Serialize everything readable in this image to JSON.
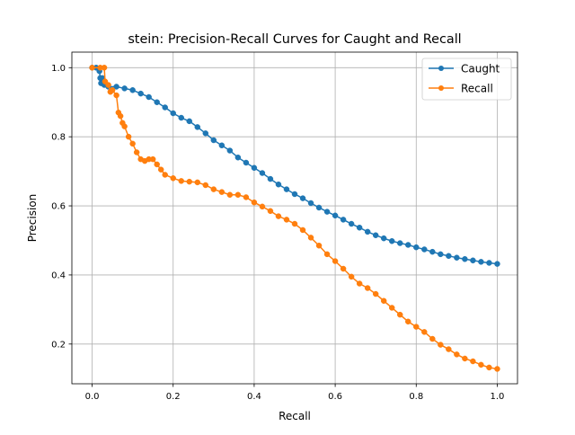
{
  "chart_data": {
    "type": "line",
    "title": "stein: Precision-Recall Curves for Caught and Recall",
    "xlabel": "Recall",
    "ylabel": "Precision",
    "xlim": [
      -0.05,
      1.05
    ],
    "ylim": [
      0.085,
      1.045
    ],
    "xticks": [
      "0.0",
      "0.2",
      "0.4",
      "0.6",
      "0.8",
      "1.0"
    ],
    "yticks": [
      "0.2",
      "0.4",
      "0.6",
      "0.8",
      "1.0"
    ],
    "grid": true,
    "legend_position": "top-right",
    "series": [
      {
        "name": "Caught",
        "color": "#1f77b4",
        "marker": "circle",
        "points": [
          [
            0.0,
            1.0
          ],
          [
            0.01,
            1.0
          ],
          [
            0.018,
            0.99
          ],
          [
            0.02,
            0.97
          ],
          [
            0.022,
            0.955
          ],
          [
            0.025,
            0.97
          ],
          [
            0.03,
            0.95
          ],
          [
            0.04,
            0.945
          ],
          [
            0.06,
            0.945
          ],
          [
            0.08,
            0.94
          ],
          [
            0.1,
            0.935
          ],
          [
            0.12,
            0.925
          ],
          [
            0.14,
            0.915
          ],
          [
            0.16,
            0.9
          ],
          [
            0.18,
            0.885
          ],
          [
            0.2,
            0.868
          ],
          [
            0.22,
            0.855
          ],
          [
            0.24,
            0.845
          ],
          [
            0.26,
            0.828
          ],
          [
            0.28,
            0.81
          ],
          [
            0.3,
            0.79
          ],
          [
            0.32,
            0.775
          ],
          [
            0.34,
            0.76
          ],
          [
            0.36,
            0.74
          ],
          [
            0.38,
            0.725
          ],
          [
            0.4,
            0.71
          ],
          [
            0.42,
            0.695
          ],
          [
            0.44,
            0.678
          ],
          [
            0.46,
            0.662
          ],
          [
            0.48,
            0.648
          ],
          [
            0.5,
            0.634
          ],
          [
            0.52,
            0.622
          ],
          [
            0.54,
            0.608
          ],
          [
            0.56,
            0.595
          ],
          [
            0.58,
            0.583
          ],
          [
            0.6,
            0.572
          ],
          [
            0.62,
            0.56
          ],
          [
            0.64,
            0.548
          ],
          [
            0.66,
            0.537
          ],
          [
            0.68,
            0.525
          ],
          [
            0.7,
            0.515
          ],
          [
            0.72,
            0.506
          ],
          [
            0.74,
            0.498
          ],
          [
            0.76,
            0.492
          ],
          [
            0.78,
            0.487
          ],
          [
            0.8,
            0.48
          ],
          [
            0.82,
            0.474
          ],
          [
            0.84,
            0.467
          ],
          [
            0.86,
            0.46
          ],
          [
            0.88,
            0.455
          ],
          [
            0.9,
            0.45
          ],
          [
            0.92,
            0.446
          ],
          [
            0.94,
            0.442
          ],
          [
            0.96,
            0.438
          ],
          [
            0.98,
            0.435
          ],
          [
            1.0,
            0.432
          ]
        ]
      },
      {
        "name": "Recall",
        "color": "#ff7f0e",
        "marker": "circle",
        "points": [
          [
            0.0,
            1.0
          ],
          [
            0.02,
            1.0
          ],
          [
            0.03,
            1.0
          ],
          [
            0.032,
            0.96
          ],
          [
            0.04,
            0.95
          ],
          [
            0.045,
            0.93
          ],
          [
            0.05,
            0.935
          ],
          [
            0.06,
            0.92
          ],
          [
            0.065,
            0.87
          ],
          [
            0.07,
            0.86
          ],
          [
            0.075,
            0.84
          ],
          [
            0.08,
            0.83
          ],
          [
            0.09,
            0.8
          ],
          [
            0.1,
            0.78
          ],
          [
            0.11,
            0.755
          ],
          [
            0.12,
            0.735
          ],
          [
            0.13,
            0.73
          ],
          [
            0.14,
            0.735
          ],
          [
            0.15,
            0.735
          ],
          [
            0.16,
            0.72
          ],
          [
            0.17,
            0.705
          ],
          [
            0.18,
            0.69
          ],
          [
            0.2,
            0.68
          ],
          [
            0.22,
            0.672
          ],
          [
            0.24,
            0.67
          ],
          [
            0.26,
            0.668
          ],
          [
            0.28,
            0.66
          ],
          [
            0.3,
            0.648
          ],
          [
            0.32,
            0.64
          ],
          [
            0.34,
            0.632
          ],
          [
            0.36,
            0.632
          ],
          [
            0.38,
            0.625
          ],
          [
            0.4,
            0.61
          ],
          [
            0.42,
            0.598
          ],
          [
            0.44,
            0.585
          ],
          [
            0.46,
            0.57
          ],
          [
            0.48,
            0.56
          ],
          [
            0.5,
            0.548
          ],
          [
            0.52,
            0.53
          ],
          [
            0.54,
            0.508
          ],
          [
            0.56,
            0.485
          ],
          [
            0.58,
            0.46
          ],
          [
            0.6,
            0.44
          ],
          [
            0.62,
            0.418
          ],
          [
            0.64,
            0.395
          ],
          [
            0.66,
            0.375
          ],
          [
            0.68,
            0.362
          ],
          [
            0.7,
            0.345
          ],
          [
            0.72,
            0.325
          ],
          [
            0.74,
            0.305
          ],
          [
            0.76,
            0.285
          ],
          [
            0.78,
            0.265
          ],
          [
            0.8,
            0.25
          ],
          [
            0.82,
            0.235
          ],
          [
            0.84,
            0.215
          ],
          [
            0.86,
            0.198
          ],
          [
            0.88,
            0.185
          ],
          [
            0.9,
            0.17
          ],
          [
            0.92,
            0.158
          ],
          [
            0.94,
            0.15
          ],
          [
            0.96,
            0.14
          ],
          [
            0.98,
            0.132
          ],
          [
            1.0,
            0.128
          ]
        ]
      }
    ]
  }
}
